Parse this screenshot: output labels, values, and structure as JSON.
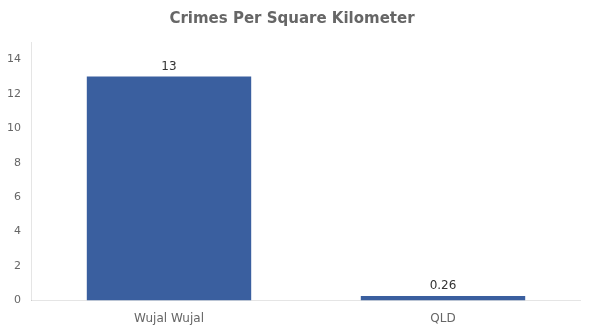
{
  "chart_data": {
    "type": "bar",
    "title": "Crimes Per Square Kilometer",
    "categories": [
      "Wujal Wujal",
      "QLD"
    ],
    "values": [
      13,
      0.26
    ],
    "color": "#3a5f9f",
    "ylim": [
      0,
      15
    ],
    "yticks": [
      0,
      2,
      4,
      6,
      8,
      10,
      12,
      14
    ],
    "grid": false,
    "data_labels": true
  }
}
